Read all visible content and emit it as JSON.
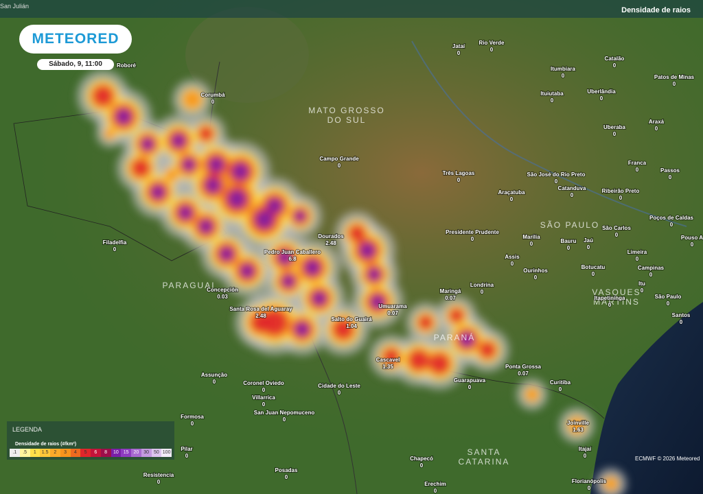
{
  "header": {
    "corner_place": "San Julián",
    "layer_title": "Densidade de raios"
  },
  "logo": "METEORED",
  "date": "Sábado, 9, 11:00",
  "regions": [
    "MATO GROSSO DO SUL",
    "PARAGUAI",
    "SÃO PAULO",
    "PARANÁ",
    "SANTA CATARINA",
    "VASQUES MARTINS"
  ],
  "places": [
    {
      "name": "Jataí",
      "value": 0
    },
    {
      "name": "Rio Verde",
      "value": 0
    },
    {
      "name": "Roboré"
    },
    {
      "name": "Corumbá",
      "value": 0
    },
    {
      "name": "Catalão",
      "value": 0
    },
    {
      "name": "Itumbiara",
      "value": 0
    },
    {
      "name": "Patos de Minas",
      "value": 0
    },
    {
      "name": "Ituiutaba",
      "value": 0
    },
    {
      "name": "Uberlândia",
      "value": 0
    },
    {
      "name": "Araxá",
      "value": 0
    },
    {
      "name": "Uberaba",
      "value": 0
    },
    {
      "name": "Campo Grande",
      "value": 0
    },
    {
      "name": "Franca",
      "value": 0
    },
    {
      "name": "Passos",
      "value": 0
    },
    {
      "name": "Três Lagoas",
      "value": 0
    },
    {
      "name": "São José do Rio Preto",
      "value": 0
    },
    {
      "name": "Catanduva",
      "value": 0
    },
    {
      "name": "Ribeirão Preto",
      "value": 0
    },
    {
      "name": "Araçatuba",
      "value": 0
    },
    {
      "name": "Poços de Caldas",
      "value": 0
    },
    {
      "name": "Presidente Prudente",
      "value": 0
    },
    {
      "name": "São Carlos",
      "value": 0
    },
    {
      "name": "Marília",
      "value": 0
    },
    {
      "name": "Bauru",
      "value": 0
    },
    {
      "name": "Jaú",
      "value": 0
    },
    {
      "name": "Pouso A",
      "value": 0
    },
    {
      "name": "Filadelfia",
      "value": 0
    },
    {
      "name": "Dourados",
      "value": 2.48
    },
    {
      "name": "Pedro Juan Caballero",
      "value": 6.8
    },
    {
      "name": "Assis",
      "value": 0
    },
    {
      "name": "Limeira",
      "value": 0
    },
    {
      "name": "Botucatu",
      "value": 0
    },
    {
      "name": "Campinas",
      "value": 0
    },
    {
      "name": "Ourinhos",
      "value": 0
    },
    {
      "name": "Londrina",
      "value": 0
    },
    {
      "name": "Concepción",
      "value": 0.03
    },
    {
      "name": "Maringá",
      "value": 0.07
    },
    {
      "name": "Itu",
      "value": 0
    },
    {
      "name": "Itapetininga",
      "value": 0
    },
    {
      "name": "São Paulo",
      "value": 0
    },
    {
      "name": "Umuarama",
      "value": 0.07
    },
    {
      "name": "Santa Rosa del Aguaray",
      "value": 2.48
    },
    {
      "name": "Salto do Guairá",
      "value": 1.04
    },
    {
      "name": "Santos",
      "value": 0
    },
    {
      "name": "Cascavel",
      "value": 1.35
    },
    {
      "name": "Ponta Grossa",
      "value": 0.07
    },
    {
      "name": "Assunção",
      "value": 0
    },
    {
      "name": "Guarapuava",
      "value": 0
    },
    {
      "name": "Curitiba",
      "value": 0
    },
    {
      "name": "Coronel Oviedo",
      "value": 0
    },
    {
      "name": "Cidade do Leste",
      "value": 0
    },
    {
      "name": "Villarrica",
      "value": 0
    },
    {
      "name": "San Juan Nepomuceno",
      "value": 0
    },
    {
      "name": "Formosa",
      "value": 0
    },
    {
      "name": "Joinville",
      "value": 1.63
    },
    {
      "name": "Pilar",
      "value": 0
    },
    {
      "name": "Itajaí",
      "value": 0
    },
    {
      "name": "Chapecó",
      "value": 0
    },
    {
      "name": "Posadas",
      "value": 0
    },
    {
      "name": "Resistencia",
      "value": 0
    },
    {
      "name": "Erechim",
      "value": 0
    },
    {
      "name": "Florianópolis",
      "value": 0
    }
  ],
  "legend": {
    "title": "LEGENDA",
    "subtitle": "Densidade de raios (#/km²)",
    "labels": [
      ".1",
      ".5",
      "1",
      "1.5",
      "2",
      "3",
      "4",
      "5",
      "6",
      "8",
      "10",
      "15",
      "20",
      "30",
      "50",
      "100"
    ]
  },
  "credit": "ECMWF © 2026 Meteored"
}
